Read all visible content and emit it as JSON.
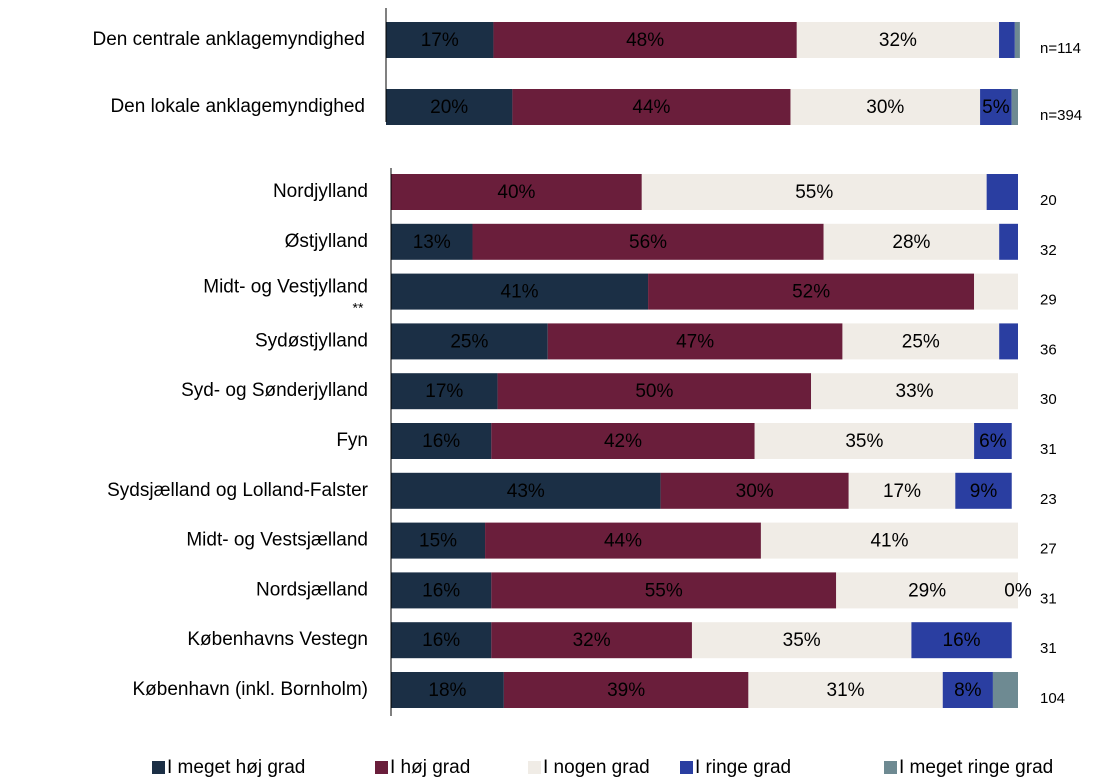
{
  "chart_data": [
    {
      "type": "bar",
      "orientation": "horizontal",
      "stacked": true,
      "categories": [
        "Den centrale anklagemyndighed",
        "Den lokale anklagemyndighed"
      ],
      "n": [
        "n=114",
        "n=394"
      ],
      "xlim": [
        0,
        100
      ],
      "series": [
        {
          "name": "I meget høj grad",
          "color": "#1b2f45",
          "values": [
            17,
            20
          ],
          "value_labels": [
            "17%",
            "20%"
          ]
        },
        {
          "name": "I høj grad",
          "color": "#6a1e3b",
          "values": [
            48,
            44
          ],
          "value_labels": [
            "48%",
            "44%"
          ]
        },
        {
          "name": "I nogen grad",
          "color": "#f0ece6",
          "values": [
            32,
            30
          ],
          "value_labels": [
            "32%",
            "30%"
          ]
        },
        {
          "name": "I ringe grad",
          "color": "#2a3ea1",
          "values": [
            2.5,
            5
          ],
          "value_labels": [
            null,
            "5%"
          ]
        },
        {
          "name": "I meget ringe grad",
          "color": "#6e8a92",
          "values": [
            0.8,
            1
          ],
          "value_labels": [
            null,
            null
          ]
        }
      ]
    },
    {
      "type": "bar",
      "orientation": "horizontal",
      "stacked": true,
      "categories": [
        "Nordjylland",
        "Østjylland",
        "Midt- og Vestjylland",
        "Sydøstjylland",
        "Syd- og Sønderjylland",
        "Fyn",
        "Sydsjælland og Lolland-Falster",
        "Midt- og Vestsjælland",
        "Nordsjælland",
        "Københavns Vestegn",
        "København (inkl. Bornholm)"
      ],
      "category_notes": [
        null,
        null,
        "**",
        null,
        null,
        null,
        null,
        null,
        null,
        null,
        null
      ],
      "n": [
        20,
        32,
        29,
        36,
        30,
        31,
        23,
        27,
        31,
        31,
        104
      ],
      "xlim": [
        0,
        100
      ],
      "series": [
        {
          "color": "#1b2f45",
          "values": [
            0,
            13,
            41,
            25,
            17,
            16,
            43,
            15,
            16,
            16,
            18
          ],
          "value_labels": [
            null,
            "13%",
            "41%",
            "25%",
            "17%",
            "16%",
            "43%",
            "15%",
            "16%",
            "16%",
            "18%"
          ]
        },
        {
          "color": "#6a1e3b",
          "values": [
            40,
            56,
            52,
            47,
            50,
            42,
            30,
            44,
            55,
            32,
            39
          ],
          "value_labels": [
            "40%",
            "56%",
            "52%",
            "47%",
            "50%",
            "42%",
            "30%",
            "44%",
            "55%",
            "32%",
            "39%"
          ]
        },
        {
          "color": "#f0ece6",
          "values": [
            55,
            28,
            7,
            25,
            33,
            35,
            17,
            41,
            29,
            35,
            31
          ],
          "value_labels": [
            "55%",
            "28%",
            null,
            "25%",
            "33%",
            "35%",
            "17%",
            "41%",
            "29%",
            "35%",
            "31%"
          ]
        },
        {
          "color": "#2a3ea1",
          "values": [
            5,
            3,
            0,
            3,
            0,
            6,
            9,
            0,
            0,
            16,
            8
          ],
          "value_labels": [
            null,
            null,
            null,
            null,
            null,
            "6%",
            "9%",
            null,
            "0%",
            "16%",
            "8%"
          ]
        },
        {
          "color": "#6e8a92",
          "values": [
            0,
            0,
            0,
            0,
            0,
            0,
            0,
            0,
            0,
            0,
            4
          ],
          "value_labels": [
            null,
            null,
            null,
            null,
            null,
            null,
            null,
            null,
            null,
            null,
            null
          ]
        }
      ]
    }
  ]
}
